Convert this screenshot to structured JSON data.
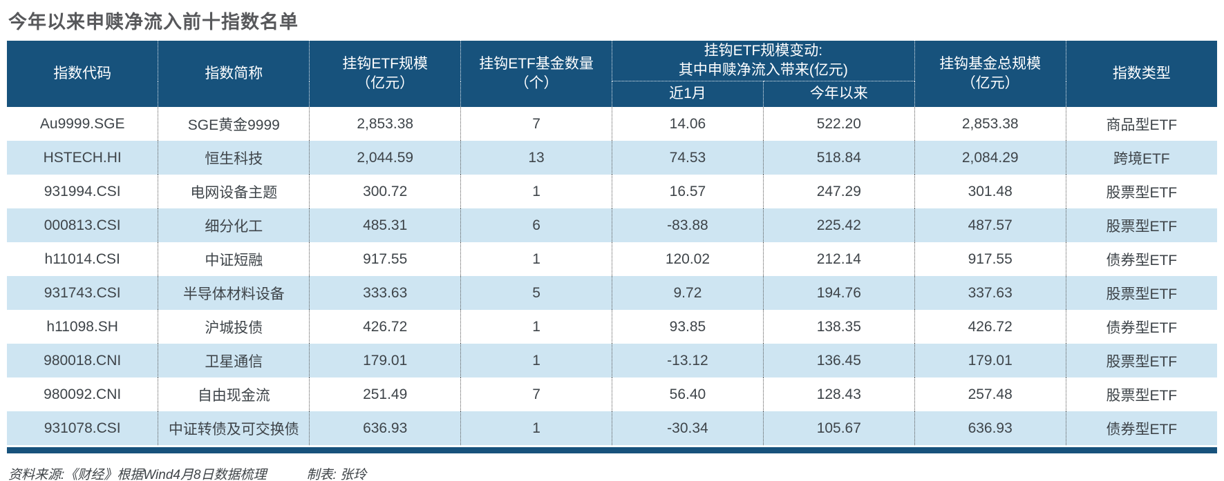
{
  "title": "今年以来申赎净流入前十指数名单",
  "colors": {
    "header_bg": "#17527c",
    "row_alt_bg": "#cee5f2",
    "row_bg": "#ffffff",
    "title_color": "#57585b",
    "body_text": "#3e4449",
    "bottom_bar": "#17527c"
  },
  "table": {
    "headers": {
      "index_code": "指数代码",
      "index_name": "指数简称",
      "etf_scale_line1": "挂钩ETF规模",
      "etf_scale_line2": "（亿元）",
      "etf_count_line1": "挂钩ETF基金数量",
      "etf_count_line2": "（个）",
      "flow_group_line1": "挂钩ETF规模变动:",
      "flow_group_line2": "其中申赎净流入带来(亿元)",
      "sub_1m": "近1月",
      "sub_ytd": "今年以来",
      "total_scale_line1": "挂钩基金总规模",
      "total_scale_line2": "（亿元）",
      "index_type": "指数类型"
    },
    "rows": [
      {
        "code": "Au9999.SGE",
        "name": "SGE黄金9999",
        "etf_scale": "2,853.38",
        "etf_count": "7",
        "net_inflow_1m": "14.06",
        "net_inflow_ytd": "522.20",
        "total_scale": "2,853.38",
        "type": "商品型ETF"
      },
      {
        "code": "HSTECH.HI",
        "name": "恒生科技",
        "etf_scale": "2,044.59",
        "etf_count": "13",
        "net_inflow_1m": "74.53",
        "net_inflow_ytd": "518.84",
        "total_scale": "2,084.29",
        "type": "跨境ETF"
      },
      {
        "code": "931994.CSI",
        "name": "电网设备主题",
        "etf_scale": "300.72",
        "etf_count": "1",
        "net_inflow_1m": "16.57",
        "net_inflow_ytd": "247.29",
        "total_scale": "301.48",
        "type": "股票型ETF"
      },
      {
        "code": "000813.CSI",
        "name": "细分化工",
        "etf_scale": "485.31",
        "etf_count": "6",
        "net_inflow_1m": "-83.88",
        "net_inflow_ytd": "225.42",
        "total_scale": "487.57",
        "type": "股票型ETF"
      },
      {
        "code": "h11014.CSI",
        "name": "中证短融",
        "etf_scale": "917.55",
        "etf_count": "1",
        "net_inflow_1m": "120.02",
        "net_inflow_ytd": "212.14",
        "total_scale": "917.55",
        "type": "债券型ETF"
      },
      {
        "code": "931743.CSI",
        "name": "半导体材料设备",
        "etf_scale": "333.63",
        "etf_count": "5",
        "net_inflow_1m": "9.72",
        "net_inflow_ytd": "194.76",
        "total_scale": "337.63",
        "type": "股票型ETF"
      },
      {
        "code": "h11098.SH",
        "name": "沪城投债",
        "etf_scale": "426.72",
        "etf_count": "1",
        "net_inflow_1m": "93.85",
        "net_inflow_ytd": "138.35",
        "total_scale": "426.72",
        "type": "债券型ETF"
      },
      {
        "code": "980018.CNI",
        "name": "卫星通信",
        "etf_scale": "179.01",
        "etf_count": "1",
        "net_inflow_1m": "-13.12",
        "net_inflow_ytd": "136.45",
        "total_scale": "179.01",
        "type": "股票型ETF"
      },
      {
        "code": "980092.CNI",
        "name": "自由现金流",
        "etf_scale": "251.49",
        "etf_count": "7",
        "net_inflow_1m": "56.40",
        "net_inflow_ytd": "128.43",
        "total_scale": "257.48",
        "type": "股票型ETF"
      },
      {
        "code": "931078.CSI",
        "name": "中证转债及可交换债",
        "etf_scale": "636.93",
        "etf_count": "1",
        "net_inflow_1m": "-30.34",
        "net_inflow_ytd": "105.67",
        "total_scale": "636.93",
        "type": "债券型ETF"
      }
    ]
  },
  "footer": {
    "source": "资料来源:《财经》根据Wind4月8日数据梳理",
    "credit": "制表: 张玲"
  },
  "chart_data": {
    "type": "table",
    "title": "今年以来申赎净流入前十指数名单",
    "columns": [
      "指数代码",
      "指数简称",
      "挂钩ETF规模（亿元）",
      "挂钩ETF基金数量（个）",
      "挂钩ETF规模变动:其中申赎净流入带来(亿元) 近1月",
      "挂钩ETF规模变动:其中申赎净流入带来(亿元) 今年以来",
      "挂钩基金总规模（亿元）",
      "指数类型"
    ],
    "rows": [
      [
        "Au9999.SGE",
        "SGE黄金9999",
        2853.38,
        7,
        14.06,
        522.2,
        2853.38,
        "商品型ETF"
      ],
      [
        "HSTECH.HI",
        "恒生科技",
        2044.59,
        13,
        74.53,
        518.84,
        2084.29,
        "跨境ETF"
      ],
      [
        "931994.CSI",
        "电网设备主题",
        300.72,
        1,
        16.57,
        247.29,
        301.48,
        "股票型ETF"
      ],
      [
        "000813.CSI",
        "细分化工",
        485.31,
        6,
        -83.88,
        225.42,
        487.57,
        "股票型ETF"
      ],
      [
        "h11014.CSI",
        "中证短融",
        917.55,
        1,
        120.02,
        212.14,
        917.55,
        "债券型ETF"
      ],
      [
        "931743.CSI",
        "半导体材料设备",
        333.63,
        5,
        9.72,
        194.76,
        337.63,
        "股票型ETF"
      ],
      [
        "h11098.SH",
        "沪城投债",
        426.72,
        1,
        93.85,
        138.35,
        426.72,
        "债券型ETF"
      ],
      [
        "980018.CNI",
        "卫星通信",
        179.01,
        1,
        -13.12,
        136.45,
        179.01,
        "股票型ETF"
      ],
      [
        "980092.CNI",
        "自由现金流",
        251.49,
        7,
        56.4,
        128.43,
        257.48,
        "股票型ETF"
      ],
      [
        "931078.CSI",
        "中证转债及可交换债",
        636.93,
        1,
        -30.34,
        105.67,
        636.93,
        "债券型ETF"
      ]
    ]
  }
}
